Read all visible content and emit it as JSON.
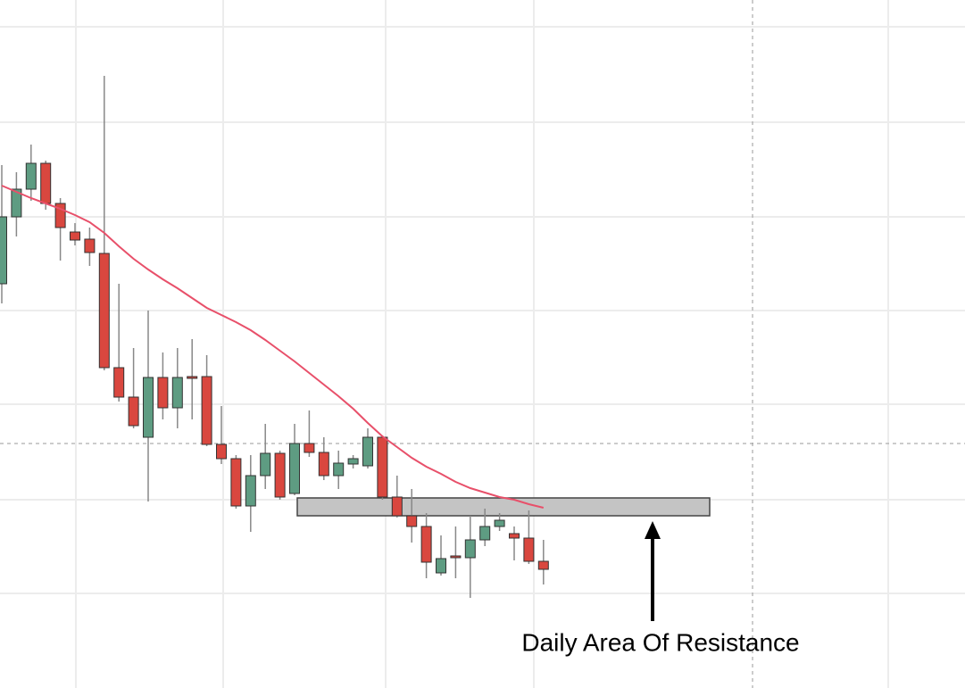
{
  "chart_data": {
    "type": "candlestick",
    "annotation": "Daily Area Of Resistance",
    "categories": [
      null,
      null,
      null,
      null,
      null,
      null,
      null,
      null,
      null,
      null,
      null,
      null,
      null,
      null,
      null,
      null,
      null,
      null,
      null,
      null,
      null,
      null,
      null,
      null,
      null,
      null,
      null,
      null,
      null,
      null,
      null,
      null,
      null,
      null,
      null,
      null,
      null,
      null
    ],
    "open": [
      453,
      528,
      559,
      588,
      543,
      511,
      503,
      487,
      359,
      326,
      281,
      348,
      314,
      349,
      349,
      273,
      257,
      204,
      238,
      263,
      218,
      274,
      264,
      238,
      251,
      249,
      281,
      214,
      193,
      181,
      129,
      148,
      146,
      166,
      181,
      173,
      168,
      142
    ],
    "close": [
      528,
      559,
      588,
      543,
      516,
      502,
      488,
      359,
      326,
      294,
      348,
      314,
      348,
      347,
      273,
      257,
      204,
      238,
      263,
      214,
      274,
      264,
      238,
      252,
      257,
      281,
      214,
      193,
      181,
      141,
      145,
      146,
      166,
      181,
      188,
      168,
      142,
      133
    ],
    "high": [
      586,
      578,
      609,
      591,
      549,
      521,
      516,
      686,
      453,
      381,
      423,
      376,
      381,
      391,
      373,
      316,
      261,
      261,
      296,
      266,
      296,
      311,
      281,
      266,
      261,
      291,
      283,
      238,
      223,
      196,
      171,
      181,
      193,
      201,
      196,
      181,
      199,
      166
    ],
    "low": [
      431,
      506,
      546,
      536,
      479,
      496,
      473,
      356,
      321,
      291,
      209,
      301,
      291,
      301,
      271,
      251,
      201,
      175,
      223,
      211,
      216,
      259,
      233,
      223,
      246,
      246,
      211,
      191,
      163,
      123,
      126,
      123,
      101,
      159,
      176,
      143,
      139,
      116
    ],
    "up_color": "#5e9c82",
    "down_color": "#d9473f",
    "moving_average": {
      "color": "#e8506a",
      "values": [
        563,
        556,
        549,
        543,
        537,
        530,
        522,
        510,
        495,
        481,
        469,
        458,
        448,
        437,
        426,
        418,
        410,
        401,
        390,
        378,
        366,
        353,
        340,
        327,
        313,
        297,
        282,
        270,
        258,
        248,
        240,
        231,
        224,
        219,
        214,
        211,
        206,
        202
      ]
    },
    "resistance_zone": {
      "low": 193,
      "high": 213,
      "color": "#c4c4c4"
    },
    "ylim": [
      0,
      771
    ]
  }
}
